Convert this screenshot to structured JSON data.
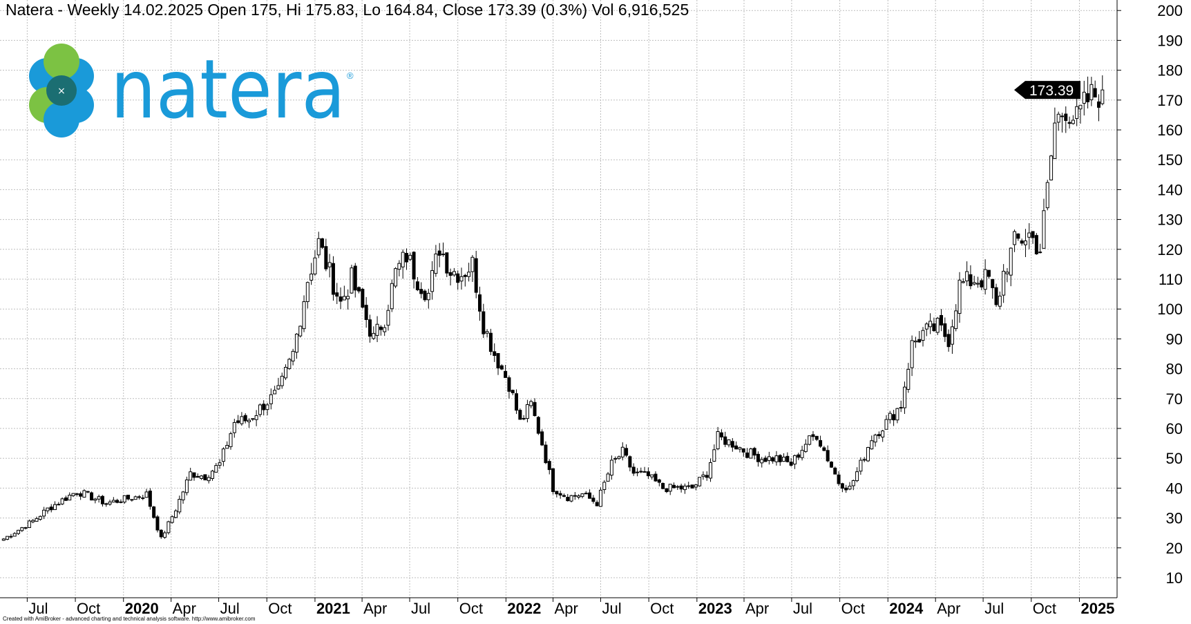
{
  "header": {
    "title": "Natera - Weekly 14.02.2025 Open 175, Hi 175.83, Lo 164.84, Close 173.39 (0.3%) Vol 6,916,525"
  },
  "logo": {
    "text": "natera",
    "registered": "®",
    "colors": {
      "blue": "#1a9ad9",
      "green": "#7cc243",
      "dark_teal": "#1b6e72"
    }
  },
  "footer": {
    "credit": "Created with AmiBroker - advanced charting and technical analysis software. http://www.amibroker.com"
  },
  "price_marker": {
    "value": "173.39"
  },
  "chart_data": {
    "type": "candlestick",
    "title": "Natera - Weekly 14.02.2025 Open 175, Hi 175.83, Lo 164.84, Close 173.39 (0.3%) Vol 6,916,525",
    "ylim": [
      0,
      202
    ],
    "yticks": [
      10,
      20,
      30,
      40,
      50,
      60,
      70,
      80,
      90,
      100,
      110,
      120,
      130,
      140,
      150,
      160,
      170,
      180,
      190,
      200
    ],
    "y_axis_side": "right",
    "grid": true,
    "x_range": [
      "2019-05-10",
      "2025-03-14"
    ],
    "x_ticks": [
      {
        "date": "2019-07-01",
        "label": "Jul",
        "year": false
      },
      {
        "date": "2019-10-01",
        "label": "Oct",
        "year": false
      },
      {
        "date": "2020-01-01",
        "label": "2020",
        "year": true
      },
      {
        "date": "2020-04-01",
        "label": "Apr",
        "year": false
      },
      {
        "date": "2020-07-01",
        "label": "Jul",
        "year": false
      },
      {
        "date": "2020-10-01",
        "label": "Oct",
        "year": false
      },
      {
        "date": "2021-01-01",
        "label": "2021",
        "year": true
      },
      {
        "date": "2021-04-01",
        "label": "Apr",
        "year": false
      },
      {
        "date": "2021-07-01",
        "label": "Jul",
        "year": false
      },
      {
        "date": "2021-10-01",
        "label": "Oct",
        "year": false
      },
      {
        "date": "2022-01-01",
        "label": "2022",
        "year": true
      },
      {
        "date": "2022-04-01",
        "label": "Apr",
        "year": false
      },
      {
        "date": "2022-07-01",
        "label": "Jul",
        "year": false
      },
      {
        "date": "2022-10-01",
        "label": "Oct",
        "year": false
      },
      {
        "date": "2023-01-01",
        "label": "2023",
        "year": true
      },
      {
        "date": "2023-04-01",
        "label": "Apr",
        "year": false
      },
      {
        "date": "2023-07-01",
        "label": "Jul",
        "year": false
      },
      {
        "date": "2023-10-01",
        "label": "Oct",
        "year": false
      },
      {
        "date": "2024-01-01",
        "label": "2024",
        "year": true
      },
      {
        "date": "2024-04-01",
        "label": "Apr",
        "year": false
      },
      {
        "date": "2024-07-01",
        "label": "Jul",
        "year": false
      },
      {
        "date": "2024-10-01",
        "label": "Oct",
        "year": false
      },
      {
        "date": "2025-01-01",
        "label": "2025",
        "year": true
      }
    ],
    "last_close": 173.39,
    "close_anchors": [
      [
        "2019-05-17",
        23
      ],
      [
        "2019-06-14",
        26
      ],
      [
        "2019-07-12",
        29
      ],
      [
        "2019-08-09",
        33
      ],
      [
        "2019-09-06",
        36
      ],
      [
        "2019-10-04",
        39
      ],
      [
        "2019-11-01",
        37
      ],
      [
        "2019-11-29",
        35
      ],
      [
        "2019-12-27",
        36
      ],
      [
        "2020-01-24",
        37
      ],
      [
        "2020-02-14",
        38
      ],
      [
        "2020-03-13",
        23
      ],
      [
        "2020-04-10",
        33
      ],
      [
        "2020-05-08",
        45
      ],
      [
        "2020-06-05",
        44
      ],
      [
        "2020-07-03",
        48
      ],
      [
        "2020-07-31",
        62
      ],
      [
        "2020-08-28",
        63
      ],
      [
        "2020-09-25",
        68
      ],
      [
        "2020-10-23",
        72
      ],
      [
        "2020-11-20",
        85
      ],
      [
        "2020-12-18",
        110
      ],
      [
        "2021-01-08",
        122
      ],
      [
        "2021-01-29",
        112
      ],
      [
        "2021-02-19",
        102
      ],
      [
        "2021-03-12",
        110
      ],
      [
        "2021-04-02",
        100
      ],
      [
        "2021-04-23",
        90
      ],
      [
        "2021-05-14",
        97
      ],
      [
        "2021-06-04",
        112
      ],
      [
        "2021-06-25",
        118
      ],
      [
        "2021-07-16",
        110
      ],
      [
        "2021-08-06",
        105
      ],
      [
        "2021-08-27",
        121
      ],
      [
        "2021-09-17",
        113
      ],
      [
        "2021-10-08",
        112
      ],
      [
        "2021-10-29",
        115
      ],
      [
        "2021-11-19",
        95
      ],
      [
        "2021-12-10",
        85
      ],
      [
        "2022-01-07",
        75
      ],
      [
        "2022-01-28",
        62
      ],
      [
        "2022-02-18",
        68
      ],
      [
        "2022-03-11",
        55
      ],
      [
        "2022-04-01",
        40
      ],
      [
        "2022-04-29",
        37
      ],
      [
        "2022-05-27",
        38
      ],
      [
        "2022-06-24",
        35
      ],
      [
        "2022-07-22",
        48
      ],
      [
        "2022-08-12",
        52
      ],
      [
        "2022-09-02",
        45
      ],
      [
        "2022-09-30",
        44
      ],
      [
        "2022-10-28",
        40
      ],
      [
        "2022-11-25",
        40
      ],
      [
        "2022-12-23",
        40
      ],
      [
        "2023-01-20",
        45
      ],
      [
        "2023-02-10",
        57
      ],
      [
        "2023-03-10",
        55
      ],
      [
        "2023-04-07",
        52
      ],
      [
        "2023-05-05",
        50
      ],
      [
        "2023-06-02",
        50
      ],
      [
        "2023-06-30",
        48
      ],
      [
        "2023-07-28",
        55
      ],
      [
        "2023-08-18",
        58
      ],
      [
        "2023-09-08",
        50
      ],
      [
        "2023-09-29",
        42
      ],
      [
        "2023-10-20",
        40
      ],
      [
        "2023-11-10",
        48
      ],
      [
        "2023-12-01",
        57
      ],
      [
        "2023-12-29",
        62
      ],
      [
        "2024-01-26",
        68
      ],
      [
        "2024-02-16",
        88
      ],
      [
        "2024-03-08",
        92
      ],
      [
        "2024-04-05",
        94
      ],
      [
        "2024-04-26",
        90
      ],
      [
        "2024-05-17",
        108
      ],
      [
        "2024-06-14",
        110
      ],
      [
        "2024-07-12",
        110
      ],
      [
        "2024-07-26",
        100
      ],
      [
        "2024-08-09",
        112
      ],
      [
        "2024-08-30",
        122
      ],
      [
        "2024-09-27",
        125
      ],
      [
        "2024-10-18",
        120
      ],
      [
        "2024-11-01",
        140
      ],
      [
        "2024-11-15",
        162
      ],
      [
        "2024-12-06",
        168
      ],
      [
        "2024-12-27",
        163
      ],
      [
        "2025-01-17",
        170
      ],
      [
        "2025-02-14",
        173.39
      ]
    ]
  }
}
